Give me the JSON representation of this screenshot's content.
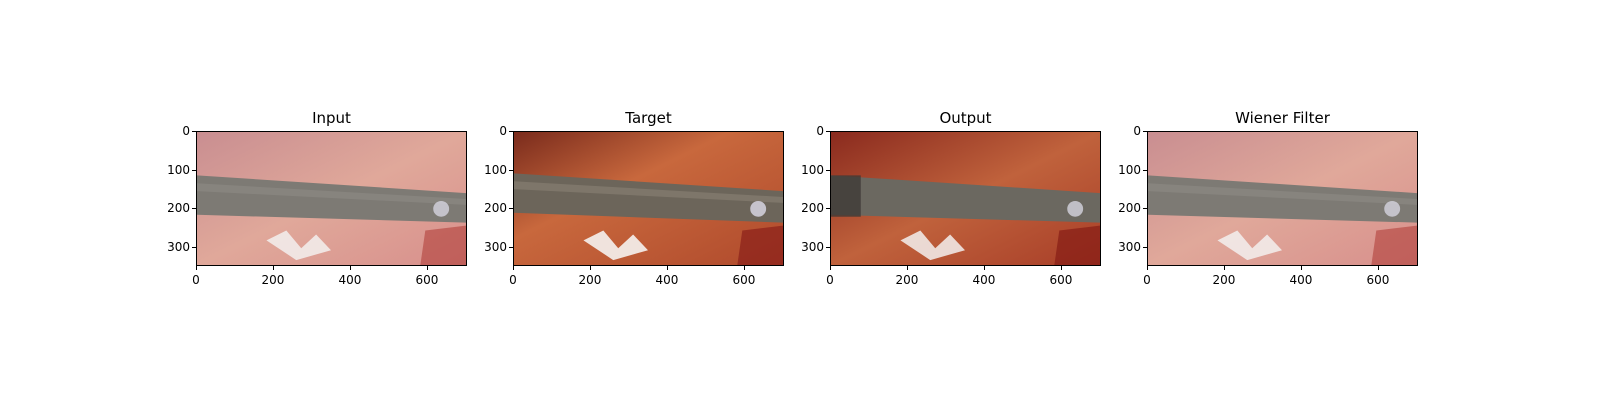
{
  "figure": {
    "panels": [
      {
        "title": "Input",
        "image": "endoscopic-input",
        "tone": "hazy"
      },
      {
        "title": "Target",
        "image": "endoscopic-target",
        "tone": "sharp"
      },
      {
        "title": "Output",
        "image": "endoscopic-output",
        "tone": "restored"
      },
      {
        "title": "Wiener Filter",
        "image": "endoscopic-wiener",
        "tone": "hazy"
      }
    ],
    "y_ticks": [
      "0",
      "100",
      "200",
      "300"
    ],
    "x_ticks": [
      "0",
      "200",
      "400",
      "600"
    ],
    "colors": {
      "tissue_hazy": "#d79a93",
      "tissue_sharp": "#c0603a",
      "tissue_restored": "#b8452c",
      "instrument": "#6f6a60",
      "highlight": "#f2f2f2"
    }
  }
}
